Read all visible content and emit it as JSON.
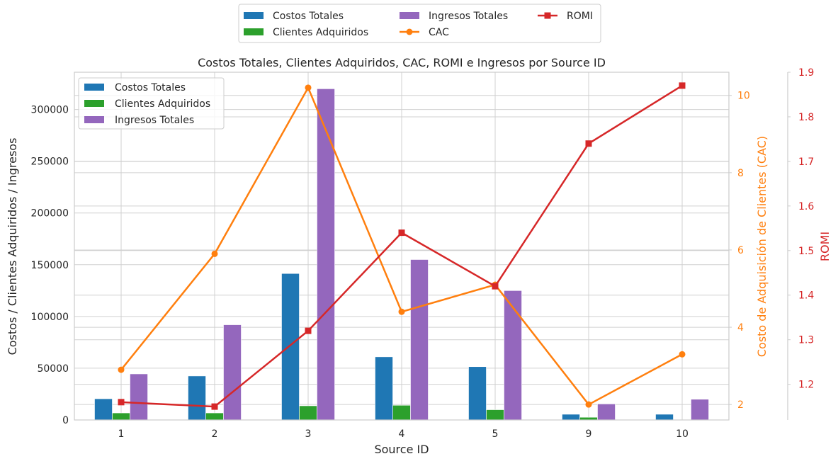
{
  "chart_data": {
    "type": "bar",
    "title": "Costos Totales, Clientes Adquiridos, CAC, ROMI e Ingresos por Source ID",
    "xlabel": "Source ID",
    "ylabel": "Costos / Clientes Adquiridos / Ingresos",
    "y2label": "Costo de Adquisición de Clientes (CAC)",
    "y3label": "ROMI",
    "categories": [
      "1",
      "2",
      "3",
      "4",
      "5",
      "9",
      "10"
    ],
    "ylim": [
      0,
      336000
    ],
    "y2lim": [
      1.6,
      10.6
    ],
    "y3lim": [
      1.12,
      1.9
    ],
    "yticks": [
      0,
      50000,
      100000,
      150000,
      200000,
      250000,
      300000
    ],
    "y2ticks": [
      2,
      4,
      6,
      8,
      10
    ],
    "y3ticks": [
      1.2,
      1.3,
      1.4,
      1.5,
      1.6,
      1.7,
      1.8,
      1.9
    ],
    "series": [
      {
        "name": "Costos Totales",
        "kind": "bar",
        "color": "#1f77b4",
        "values": [
          20500,
          42500,
          141500,
          61000,
          51500,
          5500,
          5500
        ]
      },
      {
        "name": "Clientes Adquiridos",
        "kind": "bar",
        "color": "#2ca02c",
        "values": [
          6800,
          6800,
          13700,
          14200,
          9900,
          2600,
          0
        ]
      },
      {
        "name": "Ingresos Totales",
        "kind": "bar",
        "color": "#9467bd",
        "values": [
          44500,
          92000,
          320000,
          155000,
          125000,
          15500,
          20000
        ]
      },
      {
        "name": "CAC",
        "kind": "line",
        "axis": "y2",
        "color": "#ff7f0e",
        "values": [
          2.9,
          5.9,
          10.2,
          4.4,
          5.1,
          2.0,
          3.3
        ]
      },
      {
        "name": "ROMI",
        "kind": "line",
        "axis": "y3",
        "color": "#d62728",
        "values": [
          1.16,
          1.15,
          1.32,
          1.54,
          1.42,
          1.74,
          1.87
        ]
      }
    ],
    "legend_top": [
      "Costos Totales",
      "Clientes Adquiridos",
      "Ingresos Totales",
      "CAC",
      "ROMI"
    ],
    "legend_inner": [
      "Costos Totales",
      "Clientes Adquiridos",
      "Ingresos Totales"
    ],
    "legend_top_position": "top-center",
    "legend_inner_position": "top-left",
    "grid": true
  }
}
